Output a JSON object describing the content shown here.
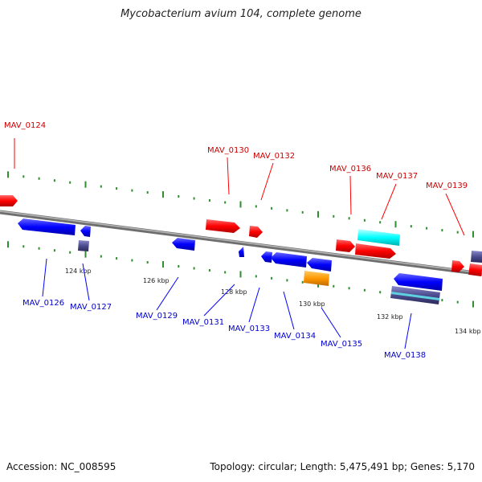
{
  "title": "Mycobacterium avium 104, complete genome",
  "footer": {
    "accession": "Accession: NC_008595",
    "summary": "Topology: circular; Length: 5,475,491 bp; Genes: 5,170"
  },
  "colors": {
    "forward_gene": "#ff0000",
    "reverse_gene": "#0000ff",
    "forward_label": "#cc0000",
    "reverse_label": "#0000cc",
    "backbone": "#808080",
    "ticks": "#2f8f2f",
    "cyan_feature": "#00ffff",
    "orange_feature": "#ff9900",
    "slate_feature": "#4b4b8f"
  },
  "scale_labels": [
    "124 kbp",
    "126 kbp",
    "128 kbp",
    "130 kbp",
    "132 kbp",
    "134 kbp"
  ],
  "forward_labels": [
    "MAV_0124",
    "MAV_0130",
    "MAV_0132",
    "MAV_0136",
    "MAV_0137",
    "MAV_0139"
  ],
  "reverse_labels": [
    "MAV_0126",
    "MAV_0127",
    "MAV_0129",
    "MAV_0131",
    "MAV_0133",
    "MAV_0134",
    "MAV_0135",
    "MAV_0138"
  ]
}
